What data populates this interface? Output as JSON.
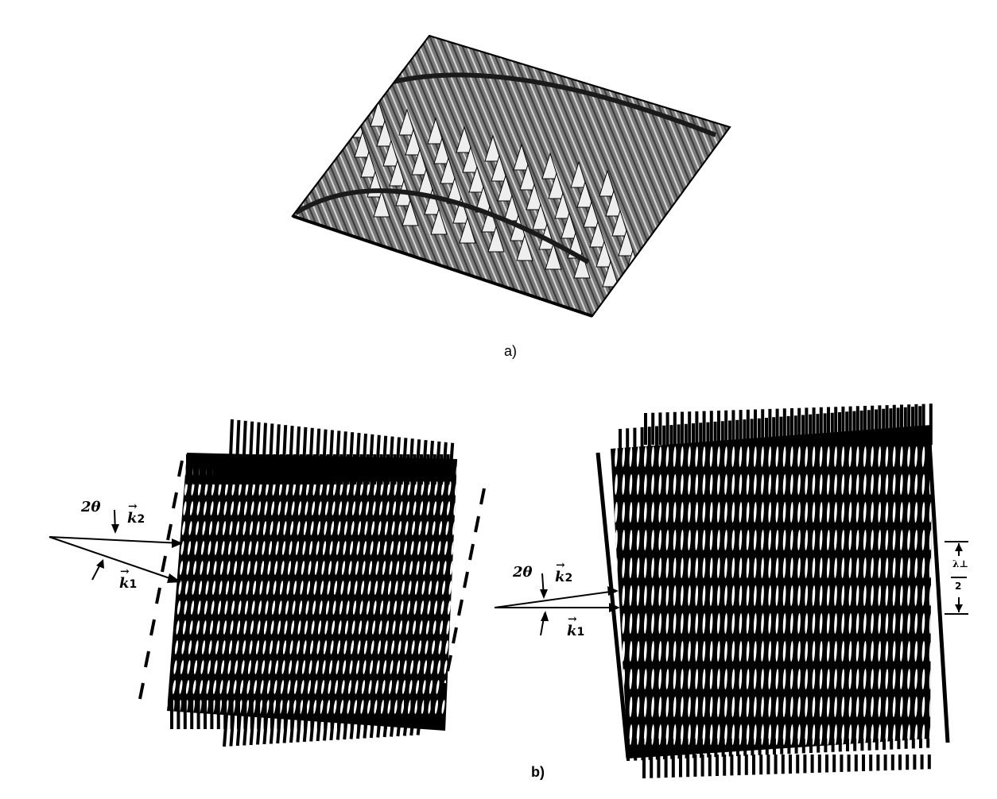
{
  "figure": {
    "panel_a_label": "a)",
    "panel_b_label": "b)",
    "left": {
      "angle_label": "2θ",
      "k2_label": "k",
      "k2_sub": "2",
      "k1_label": "k",
      "k1_sub": "1"
    },
    "right": {
      "angle_label": "2θ",
      "k2_label": "k",
      "k2_sub": "2",
      "k1_label": "k",
      "k1_sub": "1",
      "spacing_numerator": "λ⊥",
      "spacing_denominator": "2"
    }
  }
}
